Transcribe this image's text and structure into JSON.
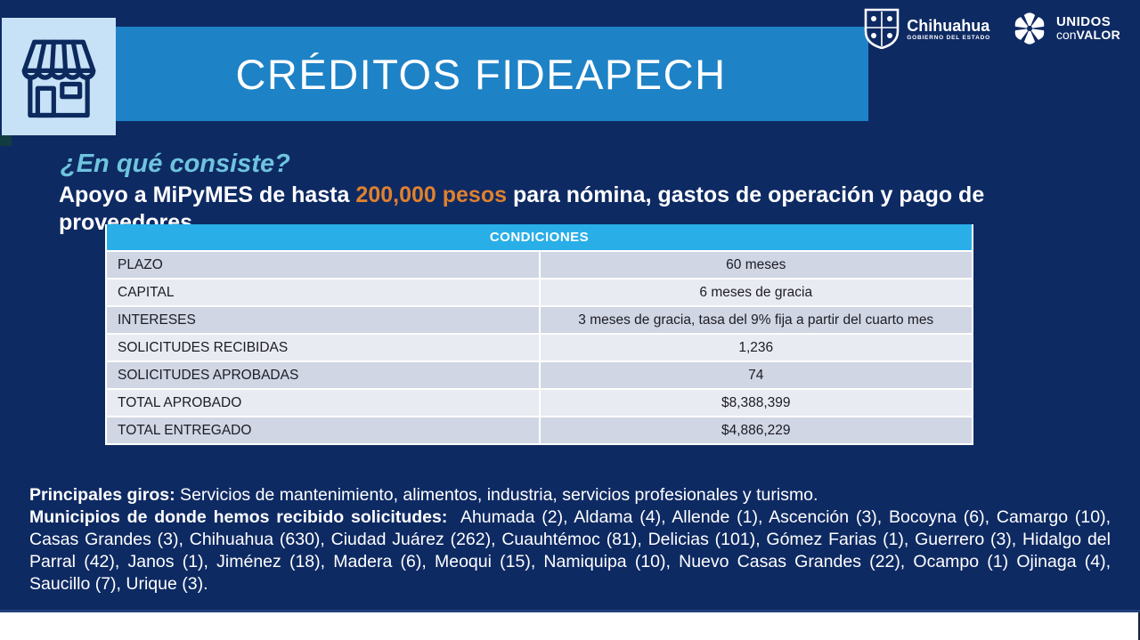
{
  "slide": {
    "title": "CRÉDITOS FIDEAPECH",
    "heading": "¿En qué consiste?",
    "intro": {
      "part1": "Apoyo a MiPyMES de hasta ",
      "highlight": "200,000 pesos",
      "part2": " para nómina, gastos de operación y pago de",
      "part3": "proveedores"
    }
  },
  "logos": {
    "chihuahua": {
      "name": "Chihuahua",
      "subtitle": "GOBIERNO DEL ESTADO"
    },
    "unidos": {
      "line1": "UNIDOS",
      "line2_light": "con",
      "line2_bold": "VALOR"
    }
  },
  "table": {
    "header": "CONDICIONES",
    "rows": [
      {
        "label": "PLAZO",
        "value": "60 meses"
      },
      {
        "label": "CAPITAL",
        "value": "6 meses de gracia"
      },
      {
        "label": "INTERESES",
        "value": "3 meses de gracia, tasa del 9% fija a partir del cuarto mes"
      },
      {
        "label": "SOLICITUDES RECIBIDAS",
        "value": "1,236"
      },
      {
        "label": "SOLICITUDES APROBADAS",
        "value": "74"
      },
      {
        "label": "TOTAL APROBADO",
        "value": "$8,388,399"
      },
      {
        "label": "TOTAL ENTREGADO",
        "value": "$4,886,229"
      }
    ]
  },
  "footer": {
    "giros_label": "Principales giros:",
    "giros_text": " Servicios de mantenimiento, alimentos, industria, servicios profesionales y turismo.",
    "municipios_label": "Municipios de donde hemos recibido solicitudes:",
    "municipios_text": "  Ahumada (2), Aldama (4), Allende (1), Ascención (3), Bocoyna (6), Camargo (10), Casas Grandes (3), Chihuahua (630), Ciudad Juárez (262), Cuauhtémoc (81), Delicias (101), Gómez Farias (1), Guerrero (3), Hidalgo del Parral (42), Janos (1), Jiménez (18), Madera (6), Meoqui (15), Namiquipa (10), Nuevo Casas Grandes (22), Ocampo (1) Ojinaga (4), Saucillo (7), Urique (3)."
  },
  "colors": {
    "background_navy": "#0e2a63",
    "banner_blue": "#1e82c6",
    "table_header_cyan": "#29aee8",
    "heading_cyan": "#6ec4dd",
    "highlight_orange": "#e0812e",
    "icon_box_light_blue": "#c7e2f6",
    "row_odd": "#d0d6e3",
    "row_even": "#e9ebf2"
  }
}
